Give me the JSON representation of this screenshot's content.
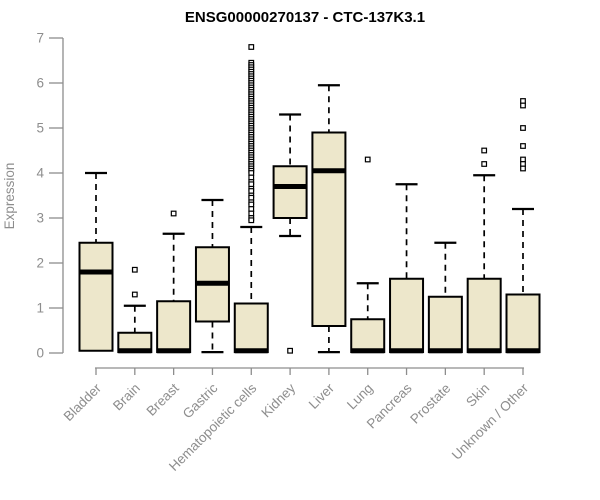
{
  "chart_data": {
    "type": "boxplot",
    "title": "ENSG00000270137 - CTC-137K3.1",
    "ylabel": "Expression",
    "xlabel": "",
    "ylim": [
      0,
      7
    ],
    "yticks": [
      0,
      1,
      2,
      3,
      4,
      5,
      6,
      7
    ],
    "grid": false,
    "legend": "none",
    "colors": {
      "box_fill": "#EDE7CB",
      "box_border": "#000000",
      "median": "#000000",
      "whisker": "#000000",
      "axis": "#8d8d8d",
      "title": "#000000",
      "background": "#ffffff"
    },
    "categories": [
      "Bladder",
      "Brain",
      "Breast",
      "Gastric",
      "Hematopoietic cells",
      "Kidney",
      "Liver",
      "Lung",
      "Pancreas",
      "Prostate",
      "Skin",
      "Unknown / Other"
    ],
    "series": [
      {
        "name": "Bladder",
        "min": 0.05,
        "q1": 0.05,
        "median": 1.8,
        "q3": 2.45,
        "max": 4.0,
        "outliers": []
      },
      {
        "name": "Brain",
        "min": 0.02,
        "q1": 0.02,
        "median": 0.05,
        "q3": 0.45,
        "max": 1.05,
        "outliers": [
          1.85,
          1.3
        ]
      },
      {
        "name": "Breast",
        "min": 0.02,
        "q1": 0.02,
        "median": 0.05,
        "q3": 1.15,
        "max": 2.65,
        "outliers": [
          3.1
        ]
      },
      {
        "name": "Gastric",
        "min": 0.02,
        "q1": 0.7,
        "median": 1.55,
        "q3": 2.35,
        "max": 3.4,
        "outliers": []
      },
      {
        "name": "Hematopoietic cells",
        "min": 0.02,
        "q1": 0.02,
        "median": 0.05,
        "q3": 1.1,
        "max": 2.8,
        "outliers": [
          6.8,
          6.45,
          6.4,
          6.35,
          6.3,
          6.25,
          6.2,
          6.15,
          6.1,
          6.05,
          6.0,
          5.95,
          5.9,
          5.85,
          5.8,
          5.75,
          5.7,
          5.65,
          5.6,
          5.55,
          5.5,
          5.45,
          5.4,
          5.35,
          5.3,
          5.25,
          5.2,
          5.15,
          5.1,
          5.05,
          5.0,
          4.95,
          4.9,
          4.85,
          4.8,
          4.75,
          4.7,
          4.65,
          4.6,
          4.55,
          4.5,
          4.45,
          4.4,
          4.35,
          4.3,
          4.25,
          4.2,
          4.15,
          4.1,
          4.05,
          4.0,
          3.9,
          3.8,
          3.75,
          3.65,
          3.6,
          3.5,
          3.45,
          3.35,
          3.3,
          3.2,
          3.1,
          3.0,
          2.95
        ]
      },
      {
        "name": "Kidney",
        "min": 2.6,
        "q1": 3.0,
        "median": 3.7,
        "q3": 4.15,
        "max": 5.3,
        "outliers": [
          0.05
        ]
      },
      {
        "name": "Liver",
        "min": 0.02,
        "q1": 0.6,
        "median": 4.05,
        "q3": 4.9,
        "max": 5.95,
        "outliers": []
      },
      {
        "name": "Lung",
        "min": 0.02,
        "q1": 0.02,
        "median": 0.05,
        "q3": 0.75,
        "max": 1.55,
        "outliers": [
          4.3
        ]
      },
      {
        "name": "Pancreas",
        "min": 0.02,
        "q1": 0.02,
        "median": 0.05,
        "q3": 1.65,
        "max": 3.75,
        "outliers": []
      },
      {
        "name": "Prostate",
        "min": 0.02,
        "q1": 0.02,
        "median": 0.05,
        "q3": 1.25,
        "max": 2.45,
        "outliers": []
      },
      {
        "name": "Skin",
        "min": 0.02,
        "q1": 0.02,
        "median": 0.05,
        "q3": 1.65,
        "max": 3.95,
        "outliers": [
          4.5,
          4.2
        ]
      },
      {
        "name": "Unknown / Other",
        "min": 0.02,
        "q1": 0.02,
        "median": 0.05,
        "q3": 1.3,
        "max": 3.2,
        "outliers": [
          5.6,
          5.5,
          5.0,
          4.6,
          4.3,
          4.2,
          4.1
        ]
      }
    ]
  }
}
